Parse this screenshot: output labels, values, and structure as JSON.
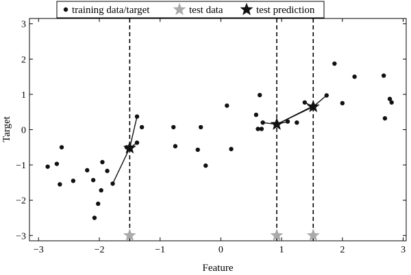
{
  "chart_data": {
    "type": "scatter",
    "xlabel": "Feature",
    "ylabel": "Target",
    "xlim": [
      -3.15,
      3.05
    ],
    "ylim": [
      -3.15,
      3.15
    ],
    "xticks": [
      -3,
      -2,
      -1,
      0,
      1,
      2,
      3
    ],
    "yticks": [
      -3,
      -2,
      -1,
      0,
      1,
      2,
      3
    ],
    "xtick_labels": [
      "−3",
      "−2",
      "−1",
      "0",
      "1",
      "2",
      "3"
    ],
    "ytick_labels": [
      "−3",
      "−2",
      "−1",
      "0",
      "1",
      "2",
      "3"
    ],
    "grid": false,
    "legend_position": "top-center",
    "legend": [
      {
        "label": "training data/target",
        "marker": "dot",
        "color": "#111111"
      },
      {
        "label": "test data",
        "marker": "star",
        "color": "#aaaaaa"
      },
      {
        "label": "test prediction",
        "marker": "star",
        "color": "#111111"
      }
    ],
    "series": [
      {
        "name": "training data/target",
        "marker": "dot",
        "color": "#111111",
        "points": [
          [
            -2.85,
            -1.05
          ],
          [
            -2.7,
            -0.97
          ],
          [
            -2.65,
            -1.55
          ],
          [
            -2.62,
            -0.5
          ],
          [
            -2.43,
            -1.45
          ],
          [
            -2.2,
            -1.15
          ],
          [
            -2.1,
            -1.43
          ],
          [
            -2.08,
            -2.5
          ],
          [
            -2.02,
            -2.1
          ],
          [
            -1.97,
            -1.72
          ],
          [
            -1.95,
            -0.92
          ],
          [
            -1.87,
            -1.17
          ],
          [
            -1.78,
            -1.53
          ],
          [
            -1.55,
            -0.5
          ],
          [
            -1.38,
            0.37
          ],
          [
            -1.38,
            -0.37
          ],
          [
            -1.3,
            0.07
          ],
          [
            -0.78,
            0.07
          ],
          [
            -0.75,
            -0.47
          ],
          [
            -0.38,
            -0.57
          ],
          [
            -0.33,
            0.07
          ],
          [
            -0.25,
            -1.02
          ],
          [
            0.1,
            0.68
          ],
          [
            0.17,
            -0.55
          ],
          [
            0.58,
            0.42
          ],
          [
            0.61,
            0.02
          ],
          [
            0.64,
            0.98
          ],
          [
            0.67,
            0.02
          ],
          [
            0.69,
            0.2
          ],
          [
            0.9,
            0.15
          ],
          [
            1.1,
            0.23
          ],
          [
            1.25,
            0.2
          ],
          [
            1.38,
            0.77
          ],
          [
            1.52,
            0.67
          ],
          [
            1.74,
            0.97
          ],
          [
            1.87,
            1.87
          ],
          [
            2.0,
            0.75
          ],
          [
            2.2,
            1.5
          ],
          [
            2.68,
            1.53
          ],
          [
            2.7,
            0.32
          ],
          [
            2.78,
            0.87
          ],
          [
            2.81,
            0.77
          ]
        ]
      },
      {
        "name": "test data",
        "marker": "star",
        "color": "#aaaaaa",
        "points": [
          [
            -1.5,
            -3.0
          ],
          [
            0.92,
            -3.0
          ],
          [
            1.52,
            -3.0
          ]
        ]
      },
      {
        "name": "test prediction",
        "marker": "star",
        "color": "#111111",
        "points": [
          [
            -1.5,
            -0.52
          ],
          [
            0.92,
            0.15
          ],
          [
            1.52,
            0.65
          ]
        ]
      }
    ],
    "neighbor_links": [
      {
        "from": [
          -1.5,
          -0.52
        ],
        "to": [
          [
            -1.38,
            0.37
          ],
          [
            -1.38,
            -0.37
          ],
          [
            -1.78,
            -1.53
          ]
        ]
      },
      {
        "from": [
          0.92,
          0.15
        ],
        "to": [
          [
            0.69,
            0.2
          ],
          [
            1.1,
            0.23
          ],
          [
            1.52,
            0.67
          ]
        ]
      },
      {
        "from": [
          1.52,
          0.65
        ],
        "to": [
          [
            1.38,
            0.77
          ],
          [
            1.74,
            0.97
          ],
          [
            0.92,
            0.15
          ]
        ]
      }
    ],
    "vertical_dashed_lines_x": [
      -1.5,
      0.92,
      1.52
    ]
  }
}
